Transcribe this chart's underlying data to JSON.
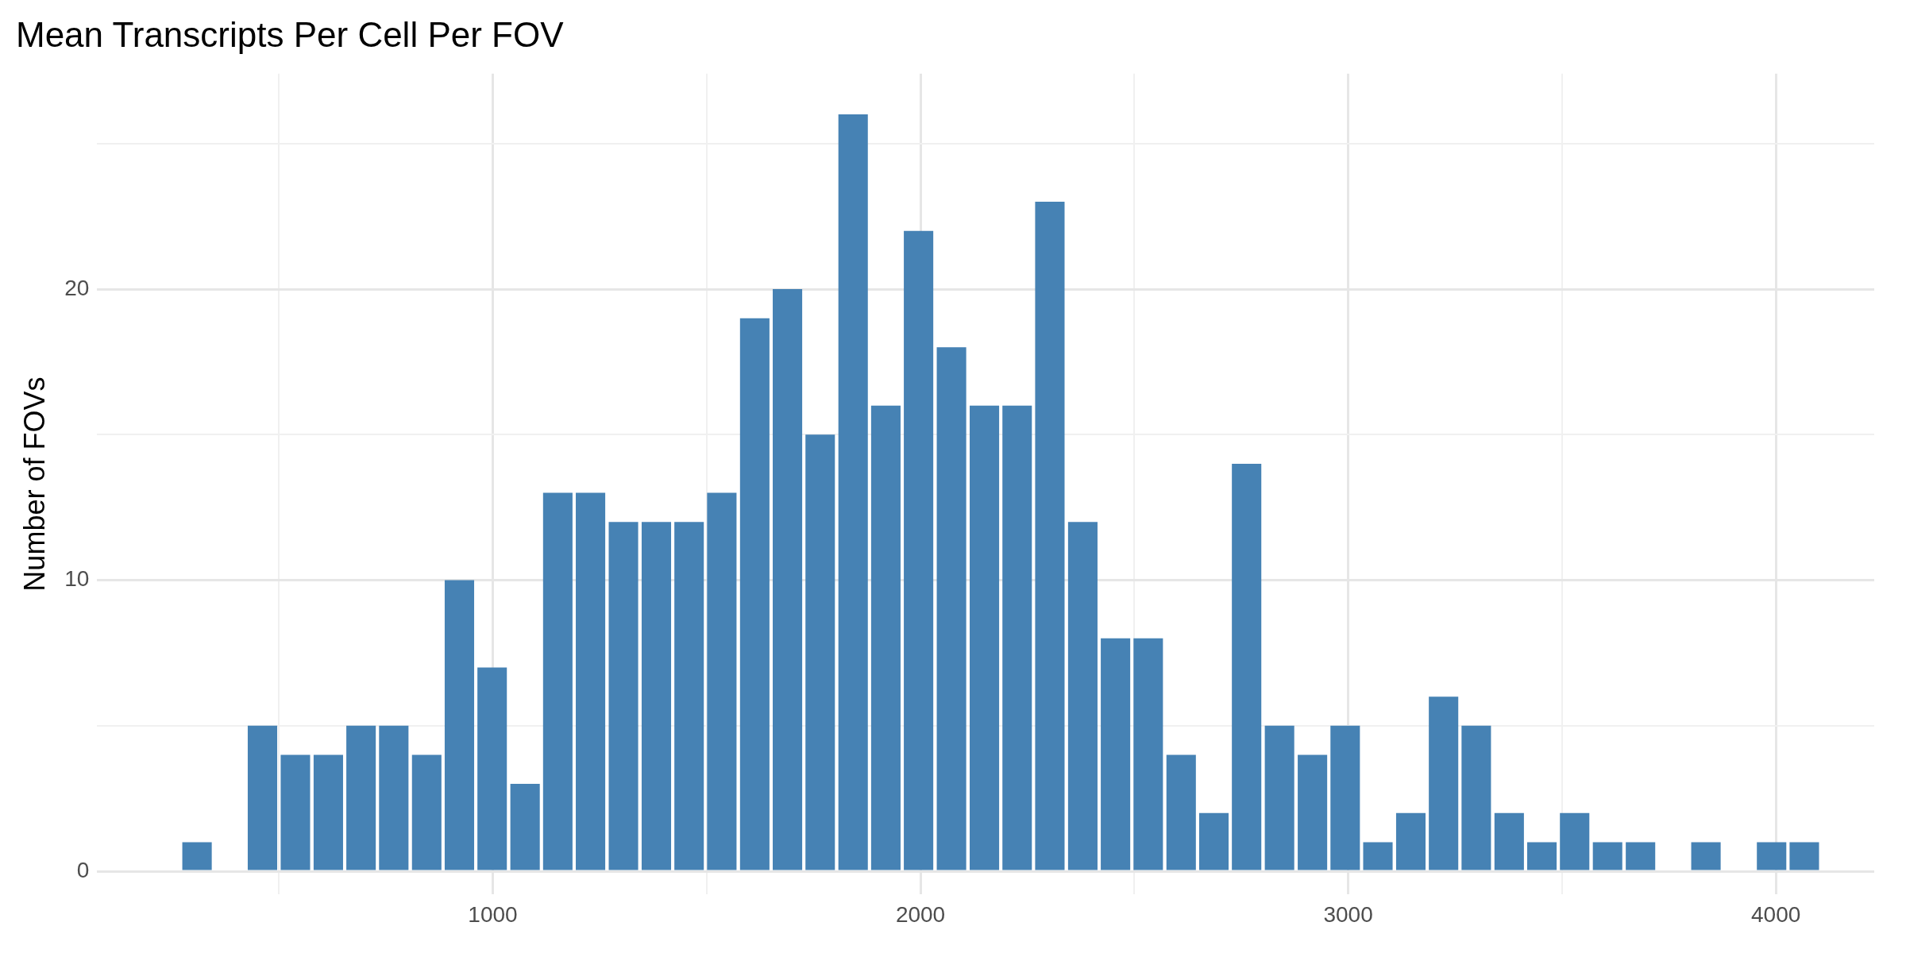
{
  "chart_data": {
    "type": "histogram",
    "title": "Mean Transcripts Per Cell Per FOV",
    "ylabel": "Number of FOVs",
    "color": "#4682b4",
    "bins": [
      270,
      347,
      423,
      500,
      577,
      654,
      730,
      807,
      884,
      960,
      1037,
      1114,
      1190,
      1267,
      1344,
      1421,
      1497,
      1574,
      1651,
      1727,
      1804,
      1881,
      1957,
      2034,
      2111,
      2188,
      2264,
      2341,
      2418,
      2494,
      2571,
      2648,
      2724,
      2801,
      2878,
      2955,
      3031,
      3108,
      3185,
      3261,
      3338,
      3415,
      3491,
      3568,
      3645,
      3722,
      3798,
      3875,
      3952,
      4028,
      4105
    ],
    "values": [
      1,
      0,
      5,
      4,
      4,
      5,
      5,
      4,
      10,
      7,
      3,
      13,
      13,
      12,
      12,
      12,
      13,
      19,
      20,
      15,
      26,
      16,
      22,
      18,
      16,
      16,
      23,
      12,
      8,
      8,
      4,
      2,
      14,
      5,
      4,
      5,
      1,
      2,
      6,
      5,
      2,
      1,
      2,
      1,
      1,
      0,
      1,
      0,
      1,
      1
    ],
    "xlim": [
      75,
      4230
    ],
    "ylim": [
      -0.8,
      27.4
    ],
    "xticks": [
      {
        "value": 500,
        "label": null
      },
      1000,
      {
        "value": 1500,
        "label": null
      },
      2000,
      {
        "value": 2500,
        "label": null
      },
      3000,
      {
        "value": 3500,
        "label": null
      },
      4000
    ],
    "yticks": [
      0,
      {
        "value": 5,
        "label": null
      },
      10,
      {
        "value": 15,
        "label": null
      },
      20,
      {
        "value": 25,
        "label": null
      }
    ],
    "grid": true
  }
}
